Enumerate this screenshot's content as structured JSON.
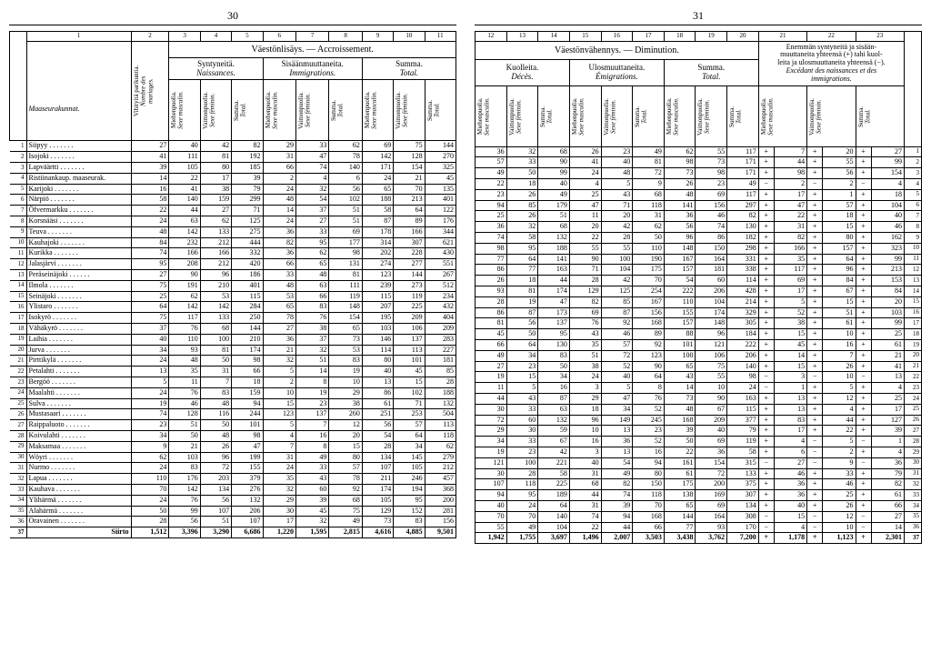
{
  "leftPageNum": "30",
  "rightPageNum": "31",
  "leftColNums": [
    "1",
    "2",
    "3",
    "4",
    "5",
    "6",
    "7",
    "8",
    "9",
    "10",
    "11"
  ],
  "rightColNums": [
    "12",
    "13",
    "14",
    "15",
    "16",
    "17",
    "18",
    "19",
    "20",
    "21",
    "22",
    "23"
  ],
  "leftTitle": "Väestönlisäys. — Accroissement.",
  "rightTitle": "Väestönvähennys. — Diminution.",
  "leftGroups": {
    "col1a": "Vihityitä parikuntia.",
    "col1b": "Nombre des mariages.",
    "g1": "Syntyneitä.",
    "g1b": "Naissances.",
    "g2": "Sisäänmuuttaneita.",
    "g2b": "Immigrations.",
    "g3": "Summa.",
    "g3b": "Total."
  },
  "rightGroups": {
    "g1": "Kuolleita.",
    "g1b": "Décès.",
    "g2": "Ulosmuuttaneita.",
    "g2b": "Émigrations.",
    "g3": "Summa.",
    "g3b": "Total.",
    "g4a": "Enemmän syntyneitä ja sisään-",
    "g4b": "muuttaneita yhteensä (+) tahi kuol-",
    "g4c": "leita ja ulosmuuttaneita yhteensä (−).",
    "g4d": "Excédant des naissances et des",
    "g4e": "immigrations."
  },
  "vheaders": {
    "m": "Miehenpuolia.",
    "mb": "Sexe masculin.",
    "f": "Vaimonpuolia.",
    "fb": "Sexe féminin.",
    "s": "Summa.",
    "sb": "Total."
  },
  "cornerLabel": "Maaseurakunnat.",
  "footerLabel": "Siirto",
  "rows": [
    {
      "n": 1,
      "name": "Siipyy",
      "l": [
        "27",
        "40",
        "42",
        "82",
        "29",
        "33",
        "62",
        "69",
        "75",
        "144"
      ]
    },
    {
      "n": 2,
      "name": "Isojoki",
      "l": [
        "41",
        "111",
        "81",
        "192",
        "31",
        "47",
        "78",
        "142",
        "128",
        "270"
      ]
    },
    {
      "n": 3,
      "name": "Lapväärtti",
      "l": [
        "39",
        "105",
        "80",
        "185",
        "66",
        "74",
        "140",
        "171",
        "154",
        "325"
      ]
    },
    {
      "n": 4,
      "name": "Ristiinankaup. maaseurak.",
      "l": [
        "14",
        "22",
        "17",
        "39",
        "2",
        "4",
        "6",
        "24",
        "21",
        "45"
      ]
    },
    {
      "n": 5,
      "name": "Karijoki",
      "l": [
        "16",
        "41",
        "38",
        "79",
        "24",
        "32",
        "56",
        "65",
        "70",
        "135"
      ]
    },
    {
      "n": 6,
      "name": "Närpiö",
      "l": [
        "58",
        "140",
        "159",
        "299",
        "48",
        "54",
        "102",
        "188",
        "213",
        "401"
      ]
    },
    {
      "n": 7,
      "name": "Öfvermarkku",
      "l": [
        "22",
        "44",
        "27",
        "71",
        "14",
        "37",
        "51",
        "58",
        "64",
        "122"
      ]
    },
    {
      "n": 8,
      "name": "Korsnääsi",
      "l": [
        "24",
        "63",
        "62",
        "125",
        "24",
        "27",
        "51",
        "87",
        "89",
        "176"
      ]
    },
    {
      "n": 9,
      "name": "Teuva",
      "l": [
        "48",
        "142",
        "133",
        "275",
        "36",
        "33",
        "69",
        "178",
        "166",
        "344"
      ]
    },
    {
      "n": 10,
      "name": "Kauhajoki",
      "l": [
        "84",
        "232",
        "212",
        "444",
        "82",
        "95",
        "177",
        "314",
        "307",
        "621"
      ]
    },
    {
      "n": 11,
      "name": "Kurikka",
      "l": [
        "74",
        "166",
        "166",
        "332",
        "36",
        "62",
        "98",
        "202",
        "228",
        "430"
      ]
    },
    {
      "n": 12,
      "name": "Jalasjärvi",
      "l": [
        "95",
        "208",
        "212",
        "420",
        "66",
        "65",
        "131",
        "274",
        "277",
        "551"
      ]
    },
    {
      "n": 13,
      "name": "Peräseinäjoki",
      "l": [
        "27",
        "90",
        "96",
        "186",
        "33",
        "48",
        "81",
        "123",
        "144",
        "267"
      ]
    },
    {
      "n": 14,
      "name": "Ilmola",
      "l": [
        "75",
        "191",
        "210",
        "401",
        "48",
        "63",
        "111",
        "239",
        "273",
        "512"
      ]
    },
    {
      "n": 15,
      "name": "Seinäjoki",
      "l": [
        "25",
        "62",
        "53",
        "115",
        "53",
        "66",
        "119",
        "115",
        "119",
        "234"
      ]
    },
    {
      "n": 16,
      "name": "Ylistaro",
      "l": [
        "64",
        "142",
        "142",
        "284",
        "65",
        "83",
        "148",
        "207",
        "225",
        "432"
      ]
    },
    {
      "n": 17,
      "name": "Isokyrö",
      "l": [
        "75",
        "117",
        "133",
        "250",
        "78",
        "76",
        "154",
        "195",
        "209",
        "404"
      ]
    },
    {
      "n": 18,
      "name": "Vähäkyrö",
      "l": [
        "37",
        "76",
        "68",
        "144",
        "27",
        "38",
        "65",
        "103",
        "106",
        "209"
      ]
    },
    {
      "n": 19,
      "name": "Laihia",
      "l": [
        "40",
        "110",
        "100",
        "210",
        "36",
        "37",
        "73",
        "146",
        "137",
        "283"
      ]
    },
    {
      "n": 20,
      "name": "Jurva",
      "l": [
        "34",
        "93",
        "81",
        "174",
        "21",
        "32",
        "53",
        "114",
        "113",
        "227"
      ]
    },
    {
      "n": 21,
      "name": "Pirttikylä",
      "l": [
        "24",
        "48",
        "50",
        "98",
        "32",
        "51",
        "83",
        "80",
        "101",
        "181"
      ]
    },
    {
      "n": 22,
      "name": "Petalahti",
      "l": [
        "13",
        "35",
        "31",
        "66",
        "5",
        "14",
        "19",
        "40",
        "45",
        "85"
      ]
    },
    {
      "n": 23,
      "name": "Bergöö",
      "l": [
        "5",
        "11",
        "7",
        "18",
        "2",
        "8",
        "10",
        "13",
        "15",
        "28"
      ]
    },
    {
      "n": 24,
      "name": "Maalahti",
      "l": [
        "24",
        "76",
        "83",
        "159",
        "10",
        "19",
        "29",
        "86",
        "102",
        "188"
      ]
    },
    {
      "n": 25,
      "name": "Sulva",
      "l": [
        "19",
        "46",
        "48",
        "94",
        "15",
        "23",
        "38",
        "61",
        "71",
        "132"
      ]
    },
    {
      "n": 26,
      "name": "Mustasaari",
      "l": [
        "74",
        "128",
        "116",
        "244",
        "123",
        "137",
        "260",
        "251",
        "253",
        "504"
      ]
    },
    {
      "n": 27,
      "name": "Raippaluoto",
      "l": [
        "23",
        "51",
        "50",
        "101",
        "5",
        "7",
        "12",
        "56",
        "57",
        "113"
      ]
    },
    {
      "n": 28,
      "name": "Koivulahti",
      "l": [
        "34",
        "50",
        "48",
        "98",
        "4",
        "16",
        "20",
        "54",
        "64",
        "118"
      ]
    },
    {
      "n": 29,
      "name": "Maksamaa",
      "l": [
        "9",
        "21",
        "26",
        "47",
        "7",
        "8",
        "15",
        "28",
        "34",
        "62"
      ]
    },
    {
      "n": 30,
      "name": "Wöyri",
      "l": [
        "62",
        "103",
        "96",
        "199",
        "31",
        "49",
        "80",
        "134",
        "145",
        "279"
      ]
    },
    {
      "n": 31,
      "name": "Nurmo",
      "l": [
        "24",
        "83",
        "72",
        "155",
        "24",
        "33",
        "57",
        "107",
        "105",
        "212"
      ]
    },
    {
      "n": 32,
      "name": "Lapua",
      "l": [
        "110",
        "176",
        "203",
        "379",
        "35",
        "43",
        "78",
        "211",
        "246",
        "457"
      ]
    },
    {
      "n": 33,
      "name": "Kauhava",
      "l": [
        "70",
        "142",
        "134",
        "276",
        "32",
        "60",
        "92",
        "174",
        "194",
        "368"
      ]
    },
    {
      "n": 34,
      "name": "Ylihärmä",
      "l": [
        "24",
        "76",
        "56",
        "132",
        "29",
        "39",
        "68",
        "105",
        "95",
        "200"
      ]
    },
    {
      "n": 35,
      "name": "Alahärmä",
      "l": [
        "50",
        "99",
        "107",
        "206",
        "30",
        "45",
        "75",
        "129",
        "152",
        "281"
      ]
    },
    {
      "n": 36,
      "name": "Oravainen",
      "l": [
        "28",
        "56",
        "51",
        "107",
        "17",
        "32",
        "49",
        "73",
        "83",
        "156"
      ]
    }
  ],
  "rowsR": [
    [
      "36",
      "32",
      "68",
      "26",
      "23",
      "49",
      "62",
      "55",
      "117",
      "+",
      "7",
      "+",
      "20",
      "+",
      "27"
    ],
    [
      "57",
      "33",
      "90",
      "41",
      "40",
      "81",
      "98",
      "73",
      "171",
      "+",
      "44",
      "+",
      "55",
      "+",
      "99"
    ],
    [
      "49",
      "50",
      "99",
      "24",
      "48",
      "72",
      "73",
      "98",
      "171",
      "+",
      "98",
      "+",
      "56",
      "+",
      "154"
    ],
    [
      "22",
      "18",
      "40",
      "4",
      "5",
      "9",
      "26",
      "23",
      "49",
      "−",
      "2",
      "−",
      "2",
      "−",
      "4"
    ],
    [
      "23",
      "26",
      "49",
      "25",
      "43",
      "68",
      "48",
      "69",
      "117",
      "+",
      "17",
      "+",
      "1",
      "+",
      "18"
    ],
    [
      "94",
      "85",
      "179",
      "47",
      "71",
      "118",
      "141",
      "156",
      "297",
      "+",
      "47",
      "+",
      "57",
      "+",
      "104"
    ],
    [
      "25",
      "26",
      "51",
      "11",
      "20",
      "31",
      "36",
      "46",
      "82",
      "+",
      "22",
      "+",
      "18",
      "+",
      "40"
    ],
    [
      "36",
      "32",
      "68",
      "20",
      "42",
      "62",
      "56",
      "74",
      "130",
      "+",
      "31",
      "+",
      "15",
      "+",
      "46"
    ],
    [
      "74",
      "58",
      "132",
      "22",
      "28",
      "50",
      "96",
      "86",
      "182",
      "+",
      "82",
      "+",
      "80",
      "+",
      "162"
    ],
    [
      "98",
      "95",
      "188",
      "55",
      "55",
      "110",
      "148",
      "150",
      "298",
      "+",
      "166",
      "+",
      "157",
      "+",
      "323"
    ],
    [
      "77",
      "64",
      "141",
      "90",
      "100",
      "190",
      "167",
      "164",
      "331",
      "+",
      "35",
      "+",
      "64",
      "+",
      "99"
    ],
    [
      "86",
      "77",
      "163",
      "71",
      "104",
      "175",
      "157",
      "181",
      "338",
      "+",
      "117",
      "+",
      "96",
      "+",
      "213"
    ],
    [
      "26",
      "18",
      "44",
      "28",
      "42",
      "70",
      "54",
      "60",
      "114",
      "+",
      "69",
      "+",
      "84",
      "+",
      "153"
    ],
    [
      "93",
      "81",
      "174",
      "129",
      "125",
      "254",
      "222",
      "206",
      "428",
      "+",
      "17",
      "+",
      "67",
      "+",
      "84"
    ],
    [
      "28",
      "19",
      "47",
      "82",
      "85",
      "167",
      "110",
      "104",
      "214",
      "+",
      "5",
      "+",
      "15",
      "+",
      "20"
    ],
    [
      "86",
      "87",
      "173",
      "69",
      "87",
      "156",
      "155",
      "174",
      "329",
      "+",
      "52",
      "+",
      "51",
      "+",
      "103"
    ],
    [
      "81",
      "56",
      "137",
      "76",
      "92",
      "168",
      "157",
      "148",
      "305",
      "+",
      "38",
      "+",
      "61",
      "+",
      "99"
    ],
    [
      "45",
      "50",
      "95",
      "43",
      "46",
      "89",
      "88",
      "96",
      "184",
      "+",
      "15",
      "+",
      "10",
      "+",
      "25"
    ],
    [
      "66",
      "64",
      "130",
      "35",
      "57",
      "92",
      "101",
      "121",
      "222",
      "+",
      "45",
      "+",
      "16",
      "+",
      "61"
    ],
    [
      "49",
      "34",
      "83",
      "51",
      "72",
      "123",
      "100",
      "106",
      "206",
      "+",
      "14",
      "+",
      "7",
      "+",
      "21"
    ],
    [
      "27",
      "23",
      "50",
      "38",
      "52",
      "90",
      "65",
      "75",
      "140",
      "+",
      "15",
      "+",
      "26",
      "+",
      "41"
    ],
    [
      "19",
      "15",
      "34",
      "24",
      "40",
      "64",
      "43",
      "55",
      "98",
      "−",
      "3",
      "−",
      "10",
      "−",
      "13"
    ],
    [
      "11",
      "5",
      "16",
      "3",
      "5",
      "8",
      "14",
      "10",
      "24",
      "−",
      "1",
      "+",
      "5",
      "+",
      "4"
    ],
    [
      "44",
      "43",
      "87",
      "29",
      "47",
      "76",
      "73",
      "90",
      "163",
      "+",
      "13",
      "+",
      "12",
      "+",
      "25"
    ],
    [
      "30",
      "33",
      "63",
      "18",
      "34",
      "52",
      "48",
      "67",
      "115",
      "+",
      "13",
      "+",
      "4",
      "+",
      "17"
    ],
    [
      "72",
      "60",
      "132",
      "96",
      "149",
      "245",
      "168",
      "209",
      "377",
      "+",
      "83",
      "+",
      "44",
      "+",
      "127"
    ],
    [
      "29",
      "30",
      "59",
      "10",
      "13",
      "23",
      "39",
      "40",
      "79",
      "+",
      "17",
      "+",
      "22",
      "+",
      "39"
    ],
    [
      "34",
      "33",
      "67",
      "16",
      "36",
      "52",
      "50",
      "69",
      "119",
      "+",
      "4",
      "−",
      "5",
      "−",
      "1"
    ],
    [
      "19",
      "23",
      "42",
      "3",
      "13",
      "16",
      "22",
      "36",
      "58",
      "+",
      "6",
      "−",
      "2",
      "+",
      "4"
    ],
    [
      "121",
      "100",
      "221",
      "40",
      "54",
      "94",
      "161",
      "154",
      "315",
      "−",
      "27",
      "−",
      "9",
      "−",
      "36"
    ],
    [
      "30",
      "28",
      "58",
      "31",
      "49",
      "80",
      "61",
      "72",
      "133",
      "+",
      "46",
      "+",
      "33",
      "+",
      "79"
    ],
    [
      "107",
      "118",
      "225",
      "68",
      "82",
      "150",
      "175",
      "200",
      "375",
      "+",
      "36",
      "+",
      "46",
      "+",
      "82"
    ],
    [
      "94",
      "95",
      "189",
      "44",
      "74",
      "118",
      "138",
      "169",
      "307",
      "+",
      "36",
      "+",
      "25",
      "+",
      "61"
    ],
    [
      "40",
      "24",
      "64",
      "31",
      "39",
      "70",
      "65",
      "69",
      "134",
      "+",
      "40",
      "+",
      "26",
      "+",
      "66"
    ],
    [
      "70",
      "70",
      "140",
      "74",
      "94",
      "168",
      "144",
      "164",
      "308",
      "−",
      "15",
      "−",
      "12",
      "−",
      "27"
    ],
    [
      "55",
      "49",
      "104",
      "22",
      "44",
      "66",
      "77",
      "93",
      "170",
      "−",
      "4",
      "−",
      "10",
      "−",
      "14"
    ]
  ],
  "leftFooter": [
    "1,512",
    "3,396",
    "3,290",
    "6,686",
    "1,220",
    "1,595",
    "2,815",
    "4,616",
    "4,885",
    "9,501"
  ],
  "rightFooter": [
    "1,942",
    "1,755",
    "3,697",
    "1,496",
    "2,007",
    "3,503",
    "3,438",
    "3,762",
    "7,200",
    "+",
    "1,178",
    "+",
    "1,123",
    "+",
    "2,301"
  ]
}
